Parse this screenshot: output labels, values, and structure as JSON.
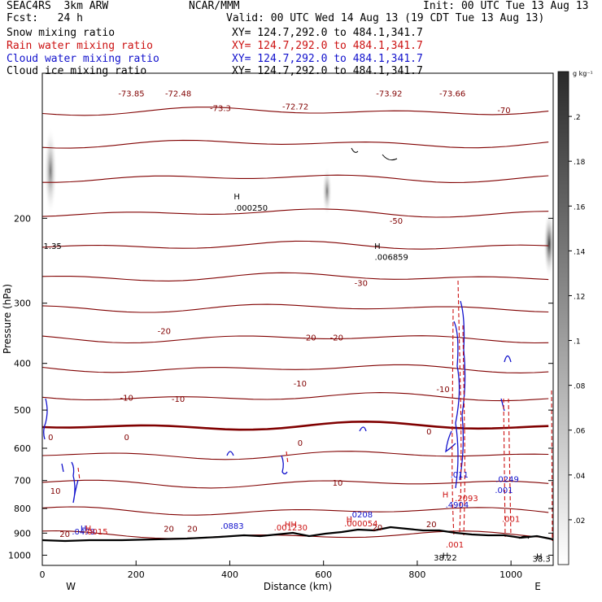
{
  "header": {
    "model": "SEAC4RS  3km ARW",
    "org": "NCAR/MMM",
    "init": "Init: 00 UTC Tue 13 Aug 13",
    "fcst": "Fcst:   24 h",
    "valid": "Valid: 00 UTC Wed 14 Aug 13 (19 CDT Tue 13 Aug 13)"
  },
  "fields": [
    {
      "name": "Snow mixing ratio",
      "xy": "XY= 124.7,292.0 to 484.1,341.7",
      "color": "#000000"
    },
    {
      "name": "Rain water mixing ratio",
      "xy": "XY= 124.7,292.0 to 484.1,341.7",
      "color": "#cc1111"
    },
    {
      "name": "Cloud water mixing ratio",
      "xy": "XY= 124.7,292.0 to 484.1,341.7",
      "color": "#1111cc"
    },
    {
      "name": "Cloud ice mixing ratio",
      "xy": "XY= 124.7,292.0 to 484.1,341.7",
      "color": "#000000"
    }
  ],
  "chart_data": {
    "type": "cross-section contour",
    "xlabel": "Distance (km)",
    "ylabel": "Pressure (hPa)",
    "xlim": [
      0,
      1090
    ],
    "ylim": [
      1050,
      100
    ],
    "y_scale": "log",
    "x_ticks": [
      "0",
      "200",
      "400",
      "600",
      "800",
      "1000"
    ],
    "y_ticks": [
      "200",
      "300",
      "400",
      "500",
      "600",
      "700",
      "800",
      "900",
      "1000"
    ],
    "endpoints": {
      "left": "W",
      "right": "E"
    },
    "colorbar": {
      "unit": "g kg⁻¹",
      "ticks": [
        ".02",
        ".04",
        ".06",
        ".08",
        ".1",
        ".12",
        ".14",
        ".16",
        ".18",
        ".2"
      ],
      "range": [
        0,
        0.22
      ],
      "colors": [
        "#ffffff",
        "#000000"
      ]
    },
    "temperature_contours": [
      -70,
      -60,
      -50,
      -40,
      -30,
      -20,
      -10,
      0,
      10,
      20
    ],
    "temperature_color": "#800000",
    "temperature_labels": [
      {
        "text": "-73.85",
        "x": 190,
        "p": 110
      },
      {
        "text": "-72.48",
        "x": 290,
        "p": 110
      },
      {
        "text": "-73.3",
        "x": 380,
        "p": 118
      },
      {
        "text": "-72.72",
        "x": 540,
        "p": 117
      },
      {
        "text": "-73.92",
        "x": 740,
        "p": 110
      },
      {
        "text": "-73.66",
        "x": 875,
        "p": 110
      },
      {
        "text": "-70",
        "x": 985,
        "p": 119
      },
      {
        "text": "-50",
        "x": 755,
        "p": 202
      },
      {
        "text": "-30",
        "x": 680,
        "p": 272
      },
      {
        "text": "-20",
        "x": 260,
        "p": 342
      },
      {
        "text": "-20",
        "x": 570,
        "p": 353
      },
      {
        "text": "-20",
        "x": 628,
        "p": 353
      },
      {
        "text": "-10",
        "x": 550,
        "p": 440
      },
      {
        "text": "-10",
        "x": 180,
        "p": 471
      },
      {
        "text": "-10",
        "x": 290,
        "p": 473
      },
      {
        "text": "-10",
        "x": 855,
        "p": 452
      },
      {
        "text": "0",
        "x": 18,
        "p": 568
      },
      {
        "text": "0",
        "x": 180,
        "p": 568
      },
      {
        "text": "0",
        "x": 550,
        "p": 584
      },
      {
        "text": "0",
        "x": 825,
        "p": 553
      },
      {
        "text": "10",
        "x": 28,
        "p": 734
      },
      {
        "text": "10",
        "x": 630,
        "p": 707
      },
      {
        "text": "20",
        "x": 48,
        "p": 902
      },
      {
        "text": "20",
        "x": 270,
        "p": 880
      },
      {
        "text": "20",
        "x": 320,
        "p": 880
      },
      {
        "text": "20",
        "x": 715,
        "p": 875
      },
      {
        "text": "20",
        "x": 830,
        "p": 862
      }
    ],
    "extrema_labels": [
      {
        "text": "1.35",
        "x": 22,
        "p": 228,
        "color": "#000000"
      },
      {
        "text": "H",
        "x": 415,
        "p": 180,
        "color": "#000000"
      },
      {
        "text": ".000250",
        "x": 445,
        "p": 190,
        "color": "#000000"
      },
      {
        "text": "H",
        "x": 715,
        "p": 228,
        "color": "#000000"
      },
      {
        "text": ".006859",
        "x": 745,
        "p": 240,
        "color": "#000000"
      },
      {
        "text": "H",
        "x": 860,
        "p": 1000,
        "color": "#000000"
      },
      {
        "text": "38.22",
        "x": 860,
        "p": 1010,
        "color": "#000000"
      },
      {
        "text": "H",
        "x": 1060,
        "p": 1005,
        "color": "#000000"
      },
      {
        "text": "38.3",
        "x": 1065,
        "p": 1015,
        "color": "#000000"
      },
      {
        "text": "H",
        "x": 88,
        "p": 878,
        "color": "#1111cc"
      },
      {
        "text": ".0478",
        "x": 88,
        "p": 892,
        "color": "#1111cc"
      },
      {
        "text": ".0883",
        "x": 405,
        "p": 868,
        "color": "#1111cc"
      },
      {
        "text": ".0208",
        "x": 680,
        "p": 822,
        "color": "#1111cc"
      },
      {
        "text": ".4904",
        "x": 885,
        "p": 785,
        "color": "#1111cc"
      },
      {
        "text": ".011",
        "x": 890,
        "p": 680,
        "color": "#1111cc"
      },
      {
        "text": ".0249",
        "x": 992,
        "p": 694,
        "color": "#1111cc"
      },
      {
        "text": ".001",
        "x": 985,
        "p": 732,
        "color": "#1111cc"
      },
      {
        "text": "H",
        "x": 98,
        "p": 878,
        "color": "#cc1111"
      },
      {
        "text": ".0015",
        "x": 115,
        "p": 892,
        "color": "#cc1111"
      },
      {
        "text": "HH",
        "x": 530,
        "p": 862,
        "color": "#cc1111"
      },
      {
        "text": ".001230",
        "x": 530,
        "p": 874,
        "color": "#cc1111"
      },
      {
        "text": "H",
        "x": 655,
        "p": 842,
        "color": "#cc1111"
      },
      {
        "text": ".000054",
        "x": 680,
        "p": 858,
        "color": "#cc1111"
      },
      {
        "text": "H",
        "x": 860,
        "p": 748,
        "color": "#cc1111"
      },
      {
        "text": ".2093",
        "x": 905,
        "p": 760,
        "color": "#cc1111"
      },
      {
        "text": ".001",
        "x": 1000,
        "p": 840,
        "color": "#cc1111"
      },
      {
        "text": ".001",
        "x": 880,
        "p": 950,
        "color": "#cc1111"
      }
    ]
  }
}
